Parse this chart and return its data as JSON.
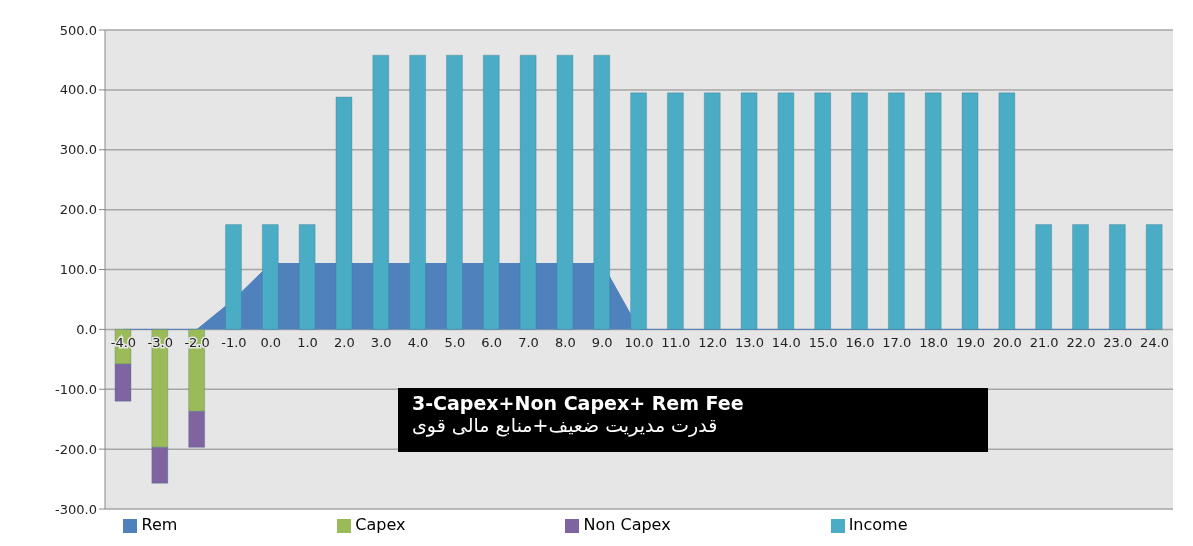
{
  "chart_data": {
    "type": "bar",
    "title": "3-Capex+Non Capex+ Rem Fee",
    "subtitle": "قدرت مدیریت ضعیف+منابع مالی قوی",
    "categories": [
      "-4.0",
      "-3.0",
      "-2.0",
      "-1.0",
      "0.0",
      "1.0",
      "2.0",
      "3.0",
      "4.0",
      "5.0",
      "6.0",
      "7.0",
      "8.0",
      "9.0",
      "10.0",
      "11.0",
      "12.0",
      "13.0",
      "14.0",
      "15.0",
      "16.0",
      "17.0",
      "18.0",
      "19.0",
      "20.0",
      "21.0",
      "22.0",
      "23.0",
      "24.0"
    ],
    "series": [
      {
        "name": "Rem",
        "type": "area",
        "color": "#4f81bd",
        "values": [
          0,
          0,
          0,
          50,
          110,
          110,
          110,
          110,
          110,
          110,
          110,
          110,
          110,
          110,
          0,
          0,
          0,
          0,
          0,
          0,
          0,
          0,
          0,
          0,
          0,
          0,
          0,
          0,
          0
        ]
      },
      {
        "name": "Capex",
        "color": "#9bbb59",
        "values": [
          -58,
          -197,
          -137,
          null,
          null,
          null,
          null,
          null,
          null,
          null,
          null,
          null,
          null,
          null,
          null,
          null,
          null,
          null,
          null,
          null,
          null,
          null,
          null,
          null,
          null,
          null,
          null,
          null,
          null
        ]
      },
      {
        "name": "Non Capex",
        "color": "#8064a2",
        "base": [
          -58,
          -197,
          -137,
          null,
          null,
          null,
          null,
          null,
          null,
          null,
          null,
          null,
          null,
          null,
          null,
          null,
          null,
          null,
          null,
          null,
          null,
          null,
          null,
          null,
          null,
          null,
          null,
          null,
          null
        ],
        "values": [
          -62,
          -60,
          -60,
          null,
          null,
          null,
          null,
          null,
          null,
          null,
          null,
          null,
          null,
          null,
          null,
          null,
          null,
          null,
          null,
          null,
          null,
          null,
          null,
          null,
          null,
          null,
          null,
          null,
          null
        ]
      },
      {
        "name": "Income",
        "color": "#4bacc6",
        "values": [
          null,
          null,
          null,
          175,
          175,
          175,
          388,
          458,
          458,
          458,
          458,
          458,
          458,
          458,
          395,
          395,
          395,
          395,
          395,
          395,
          395,
          395,
          395,
          395,
          395,
          175,
          175,
          175,
          175
        ]
      }
    ],
    "ylim": [
      -300,
      500
    ],
    "yticks": [
      {
        "value": -300,
        "label": "-300.0"
      },
      {
        "value": -200,
        "label": "-200.0"
      },
      {
        "value": -100,
        "label": "-100.0"
      },
      {
        "value": 0,
        "label": "0.0"
      },
      {
        "value": 100,
        "label": "100.0"
      },
      {
        "value": 200,
        "label": "200.0"
      },
      {
        "value": 300,
        "label": "300.0"
      },
      {
        "value": 400,
        "label": "400.0"
      },
      {
        "value": 500,
        "label": "500.0"
      }
    ],
    "grid": "y",
    "legend": "bottom"
  }
}
